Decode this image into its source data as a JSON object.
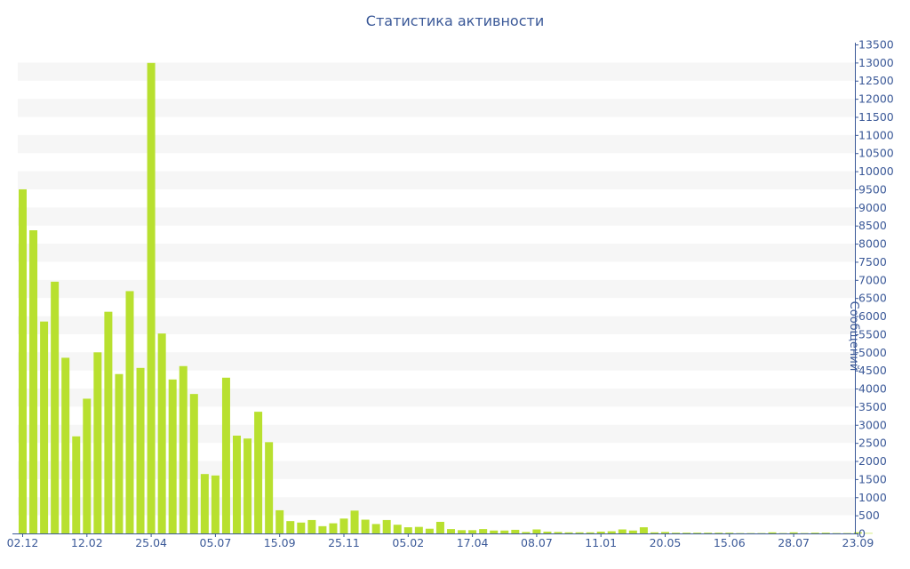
{
  "chart_data": {
    "type": "bar",
    "title": "Статистика активности",
    "xlabel": "",
    "ylabel": "Сообщений",
    "ylim": [
      0,
      13500
    ],
    "y_tick_step": 500,
    "grid": "alternating-bands",
    "bar_color": "#b8e02f",
    "band_color": "#f6f6f6",
    "axis_color": "#3b5998",
    "x_tick_labels": [
      "02.12",
      "12.02",
      "25.04",
      "05.07",
      "15.09",
      "25.11",
      "05.02",
      "17.04",
      "08.07",
      "11.01",
      "20.05",
      "15.06",
      "28.07",
      "23.09"
    ],
    "x_tick_bar_index": [
      0,
      6,
      12,
      18,
      24,
      30,
      36,
      42,
      48,
      54,
      60,
      66,
      72,
      78
    ],
    "values": [
      9500,
      8370,
      5850,
      6950,
      4850,
      2680,
      3720,
      5000,
      6120,
      4400,
      6690,
      4570,
      12990,
      5520,
      4250,
      4620,
      3850,
      1640,
      1600,
      4300,
      2700,
      2620,
      3360,
      2520,
      640,
      340,
      300,
      370,
      200,
      280,
      410,
      630,
      380,
      260,
      370,
      240,
      170,
      180,
      130,
      320,
      120,
      90,
      90,
      120,
      80,
      80,
      100,
      40,
      110,
      50,
      40,
      30,
      30,
      30,
      50,
      60,
      110,
      80,
      170,
      30,
      40,
      20,
      20,
      20,
      20,
      20,
      20,
      10,
      10,
      10,
      30,
      10,
      30,
      10,
      20,
      20,
      10,
      10,
      30,
      10
    ]
  }
}
